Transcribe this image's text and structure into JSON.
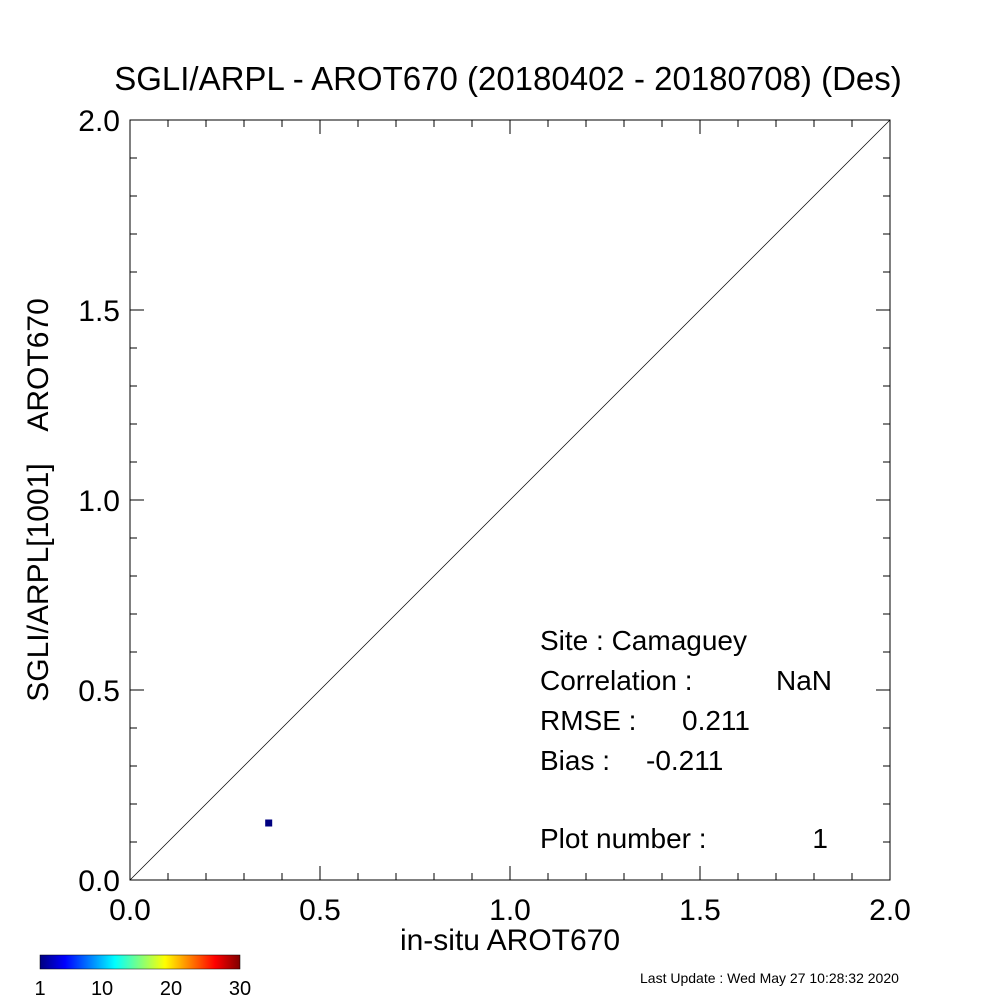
{
  "chart_data": {
    "type": "scatter",
    "title": "SGLI/ARPL - AROT670 (20180402 - 20180708) (Des)",
    "xlabel": "in-situ AROT670",
    "ylabel": "SGLI/ARPL[1001]    AROT670",
    "xlim": [
      0.0,
      2.0
    ],
    "ylim": [
      0.0,
      2.0
    ],
    "x_ticks": [
      "0.0",
      "0.5",
      "1.0",
      "1.5",
      "2.0"
    ],
    "y_ticks": [
      "0.0",
      "0.5",
      "1.0",
      "1.5",
      "2.0"
    ],
    "identity_line": true,
    "grid": false,
    "points": [
      {
        "x": 0.365,
        "y": 0.15,
        "count": 1,
        "color": "#000080"
      }
    ],
    "stats": {
      "site_label": "Site : Camaguey",
      "correlation_label": "Correlation :",
      "correlation_value": "NaN",
      "rmse_label": "RMSE :",
      "rmse_value": "0.211",
      "bias_label": "Bias :",
      "bias_value": "-0.211",
      "plot_number_label": "Plot number :",
      "plot_number_value": "1"
    },
    "colorbar": {
      "min": 1,
      "max": 30,
      "tick_labels": [
        "1",
        "10",
        "20",
        "30"
      ],
      "colors": [
        "#00007f",
        "#0000ff",
        "#007fff",
        "#00ffff",
        "#7fff7f",
        "#ffff00",
        "#ff7f00",
        "#ff0000",
        "#7f0000"
      ]
    }
  },
  "footer": {
    "last_update": "Last Update : Wed May 27 10:28:32 2020"
  }
}
